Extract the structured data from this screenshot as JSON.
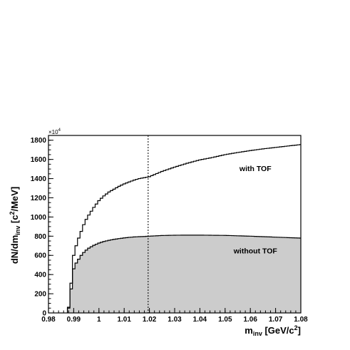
{
  "chart_data": {
    "type": "line",
    "xlabel": {
      "main": "m",
      "sub": "inv",
      "unit_pre": " [GeV/c",
      "unit_sup": "2",
      "unit_post": "]"
    },
    "ylabel": {
      "main": "dN/dm",
      "sub": "inv",
      "unit_pre": " [c",
      "unit_sup": "2",
      "unit_post": "/MeV]"
    },
    "y_scale_note": {
      "base": "×10",
      "exp": "4"
    },
    "xlim": [
      0.98,
      1.08
    ],
    "ylim": [
      0,
      1850
    ],
    "x_ticks": [
      0.98,
      0.99,
      1.0,
      1.01,
      1.02,
      1.03,
      1.04,
      1.05,
      1.06,
      1.07,
      1.08
    ],
    "x_tick_labels": [
      "0.98",
      "0.99",
      "1",
      "1.01",
      "1.02",
      "1.03",
      "1.04",
      "1.05",
      "1.06",
      "1.07",
      "1.08"
    ],
    "y_ticks": [
      0,
      200,
      400,
      600,
      800,
      1000,
      1200,
      1400,
      1600,
      1800
    ],
    "y_tick_labels": [
      "0",
      "200",
      "400",
      "600",
      "800",
      "1000",
      "1200",
      "1400",
      "1600",
      "1800"
    ],
    "vertical_line_x": 1.0195,
    "series": [
      {
        "name": "with TOF",
        "style": "step-outline",
        "x": [
          0.9875,
          0.9885,
          0.9895,
          0.99,
          0.9905,
          0.991,
          0.992,
          0.993,
          0.994,
          0.995,
          0.996,
          0.998,
          1.0,
          1.002,
          1.004,
          1.006,
          1.008,
          1.01,
          1.012,
          1.014,
          1.016,
          1.018,
          1.02,
          1.025,
          1.03,
          1.035,
          1.04,
          1.045,
          1.05,
          1.055,
          1.06,
          1.065,
          1.07,
          1.075,
          1.08
        ],
        "y": [
          0,
          120,
          500,
          600,
          650,
          700,
          780,
          850,
          920,
          975,
          1020,
          1100,
          1170,
          1220,
          1260,
          1290,
          1320,
          1345,
          1365,
          1385,
          1400,
          1410,
          1420,
          1475,
          1520,
          1560,
          1595,
          1620,
          1650,
          1672,
          1692,
          1710,
          1725,
          1740,
          1755
        ]
      },
      {
        "name": "without TOF",
        "style": "step-filled",
        "x": [
          0.9875,
          0.9885,
          0.9895,
          0.99,
          0.991,
          0.992,
          0.993,
          0.994,
          0.995,
          0.996,
          0.998,
          1.0,
          1.002,
          1.004,
          1.006,
          1.008,
          1.01,
          1.012,
          1.014,
          1.016,
          1.018,
          1.02,
          1.025,
          1.03,
          1.035,
          1.04,
          1.05,
          1.06,
          1.07,
          1.08
        ],
        "y": [
          0,
          100,
          400,
          460,
          520,
          560,
          600,
          630,
          655,
          675,
          705,
          728,
          745,
          757,
          767,
          775,
          782,
          788,
          792,
          795,
          797,
          800,
          807,
          810,
          811,
          811,
          808,
          800,
          790,
          780
        ]
      }
    ],
    "annotations": [
      {
        "text": "with TOF",
        "x": 1.062,
        "y": 1480
      },
      {
        "text": "without TOF",
        "x": 1.062,
        "y": 620
      }
    ],
    "colors": {
      "fill": "#cccccc",
      "line": "#000000"
    }
  }
}
